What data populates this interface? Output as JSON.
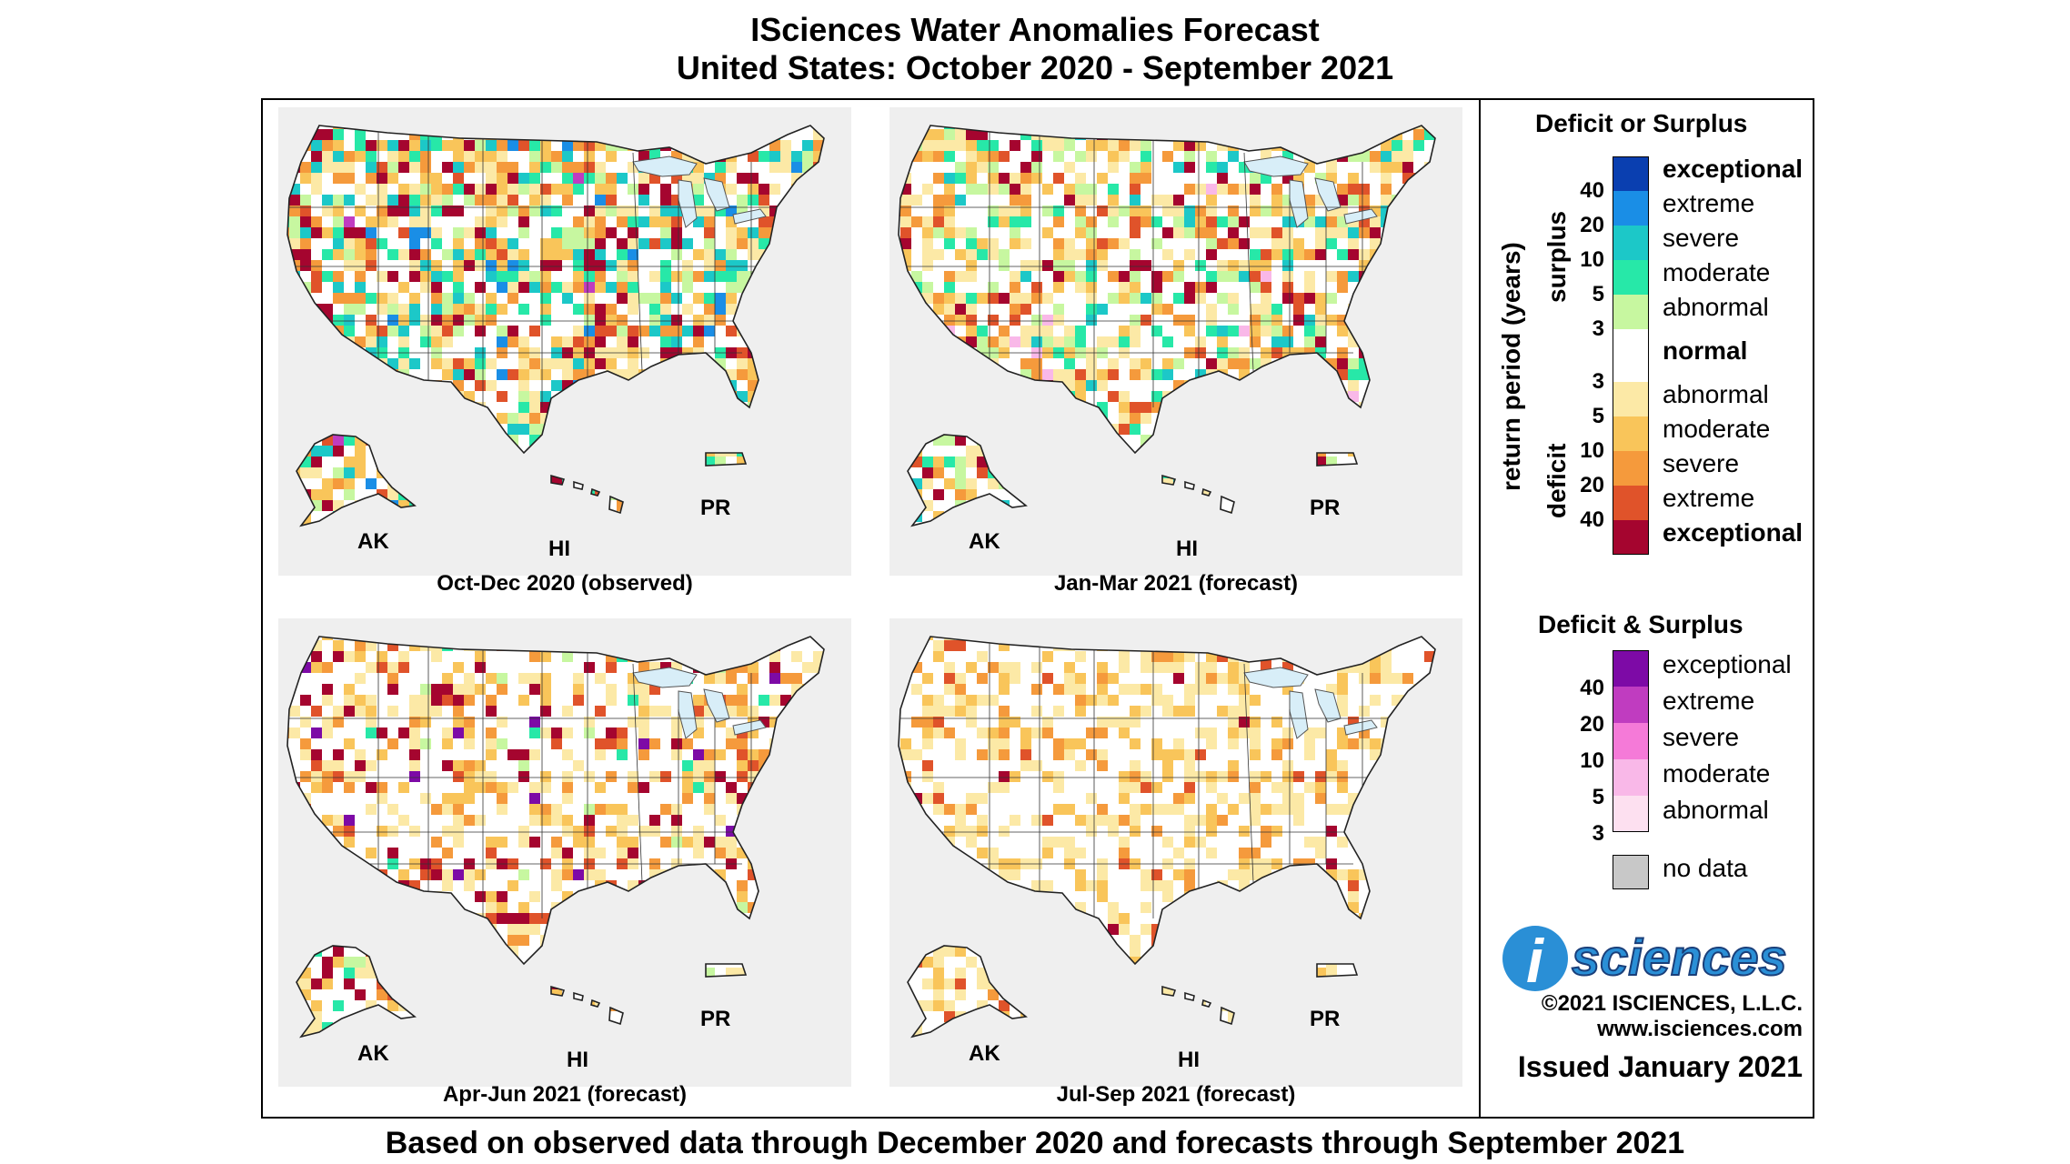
{
  "title": {
    "line1": "ISciences Water Anomalies Forecast",
    "line2": "United States: October 2020 - September 2021"
  },
  "panels": [
    {
      "caption": "Oct-Dec 2020 (observed)"
    },
    {
      "caption": "Jan-Mar 2021 (forecast)"
    },
    {
      "caption": "Apr-Jun 2021 (forecast)"
    },
    {
      "caption": "Jul-Sep 2021 (forecast)"
    }
  ],
  "region_labels": {
    "ak": "AK",
    "hi": "HI",
    "pr": "PR"
  },
  "legend": {
    "deficit_surplus": {
      "title": "Deficit or Surplus",
      "axis_label": "return period (years)",
      "surplus_label": "surplus",
      "deficit_label": "deficit",
      "surplus_classes": [
        {
          "label": "exceptional",
          "color": "#0a3fb0"
        },
        {
          "label": "extreme",
          "color": "#1a8ee6"
        },
        {
          "label": "severe",
          "color": "#1cc8c8"
        },
        {
          "label": "moderate",
          "color": "#27e8a8"
        },
        {
          "label": "abnormal",
          "color": "#c7f7a0"
        }
      ],
      "normal_label": "normal",
      "normal_color": "#ffffff",
      "deficit_classes": [
        {
          "label": "abnormal",
          "color": "#fce9a6"
        },
        {
          "label": "moderate",
          "color": "#f9c55a"
        },
        {
          "label": "severe",
          "color": "#f59a3c"
        },
        {
          "label": "extreme",
          "color": "#e0532a"
        },
        {
          "label": "exceptional",
          "color": "#a5052f"
        }
      ],
      "surplus_ticks": [
        "40",
        "20",
        "10",
        "5",
        "3"
      ],
      "deficit_ticks": [
        "3",
        "5",
        "10",
        "20",
        "40"
      ]
    },
    "deficit_and_surplus": {
      "title": "Deficit & Surplus",
      "classes": [
        {
          "label": "exceptional",
          "color": "#7d0aa6"
        },
        {
          "label": "extreme",
          "color": "#c03cc0"
        },
        {
          "label": "severe",
          "color": "#f57ad8"
        },
        {
          "label": "moderate",
          "color": "#f9b8e8"
        },
        {
          "label": "abnormal",
          "color": "#fde0f0"
        }
      ],
      "ticks": [
        "40",
        "20",
        "10",
        "5",
        "3"
      ]
    },
    "no_data": {
      "label": "no data",
      "color": "#c8c8c8"
    }
  },
  "branding": {
    "logo_letter": "i",
    "logo_text": "sciences",
    "copyright": "©2021 ISCIENCES, L.L.C.",
    "website": "www.isciences.com",
    "issued": "Issued January 2021"
  },
  "footer": "Based on observed data through December 2020 and forecasts through September 2021"
}
